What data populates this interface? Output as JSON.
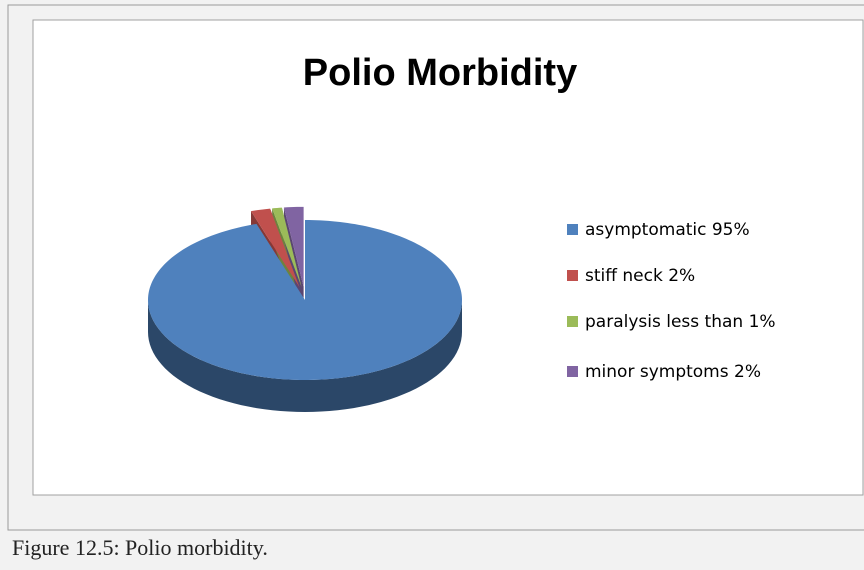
{
  "chart_data": {
    "type": "pie",
    "title": "Polio Morbidity",
    "categories": [
      "asymptomatic  95%",
      "stiff neck 2%",
      "paralysis less than 1%",
      "minor symptoms  2%"
    ],
    "values": [
      95,
      2,
      1,
      2
    ],
    "colors": [
      "#4f81bd",
      "#c0504d",
      "#9bbb59",
      "#8064a2"
    ],
    "legend": "right"
  },
  "caption": "Figure 12.5: Polio morbidity."
}
